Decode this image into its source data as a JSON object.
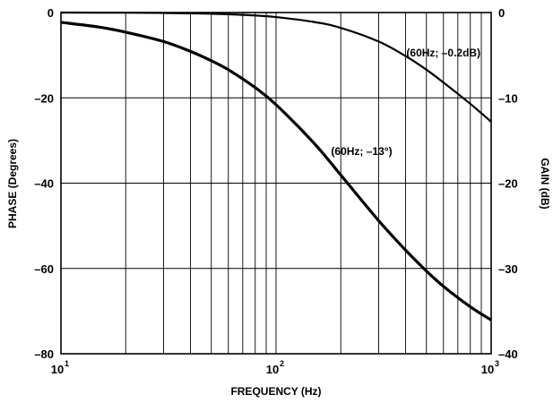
{
  "chart_data": {
    "type": "line",
    "title": "",
    "xlabel": "FREQUENCY (Hz)",
    "ylabel_left": "PHASE (Degrees)",
    "ylabel_right": "GAIN (dB)",
    "x_scale": "log",
    "xlim": [
      10,
      1000
    ],
    "ylim_left": [
      -80,
      0
    ],
    "ylim_right": [
      -40,
      0
    ],
    "grid": true,
    "x_ticks": [
      {
        "base": "10",
        "exp": "1",
        "value": 10
      },
      {
        "base": "10",
        "exp": "2",
        "value": 100
      },
      {
        "base": "10",
        "exp": "3",
        "value": 1000
      }
    ],
    "y_ticks_left": [
      "0",
      "–20",
      "–40",
      "–60",
      "–80"
    ],
    "y_tick_values_left": [
      0,
      -20,
      -40,
      -60,
      -80
    ],
    "y_ticks_right": [
      "0",
      "–10",
      "–20",
      "–30",
      "–40"
    ],
    "y_tick_values_right": [
      0,
      -10,
      -20,
      -30,
      -40
    ],
    "series": [
      {
        "axis": "left",
        "x": [
          10,
          15,
          20,
          30,
          40,
          50,
          60,
          80,
          100,
          150,
          200,
          300,
          400,
          500,
          600,
          800,
          1000
        ],
        "y": [
          -2.3,
          -3.4,
          -4.6,
          -6.8,
          -9.1,
          -11.3,
          -13.4,
          -17.6,
          -21.6,
          -30.6,
          -38.1,
          -48.8,
          -55.7,
          -60.6,
          -64.2,
          -69.0,
          -72.1
        ]
      },
      {
        "axis": "right",
        "x": [
          10,
          20,
          30,
          40,
          50,
          60,
          80,
          100,
          150,
          200,
          300,
          400,
          500,
          600,
          800,
          1000
        ],
        "y": [
          0.0,
          -0.02,
          -0.05,
          -0.1,
          -0.14,
          -0.2,
          -0.35,
          -0.53,
          -1.1,
          -1.8,
          -3.4,
          -5.1,
          -6.7,
          -8.2,
          -10.7,
          -12.8
        ]
      }
    ],
    "annotations": [
      {
        "text": "(60Hz; –0.2dB)",
        "x": 600,
        "y_left": -9.5
      },
      {
        "text": "(60Hz; –13°)",
        "x": 250,
        "y_left": -32.5
      }
    ]
  }
}
